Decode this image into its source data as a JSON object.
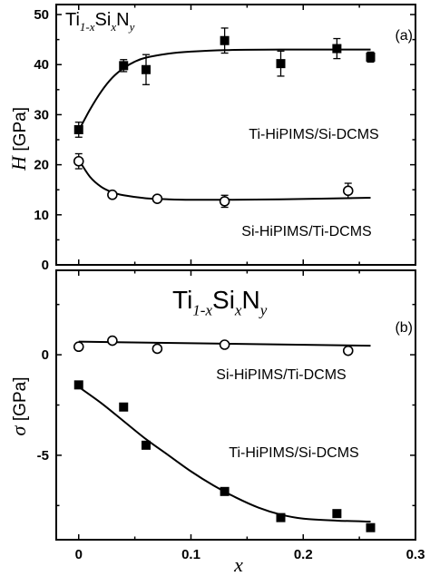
{
  "chart_data": [
    {
      "type": "scatter",
      "panel_label": "(a)",
      "formula": {
        "base1": "Ti",
        "sub1": "1-x",
        "base2": "Si",
        "sub2": "x",
        "base3": "N",
        "sub3": "y"
      },
      "ylabel": {
        "symbol": "H",
        "unit": "[GPa]"
      },
      "xlim": [
        -0.02,
        0.3
      ],
      "ylim": [
        0,
        52
      ],
      "yticks": [
        0,
        10,
        20,
        30,
        40,
        50
      ],
      "series": [
        {
          "name": "Ti-HiPIMS/Si-DCMS",
          "marker": "filled-square",
          "x": [
            0,
            0.04,
            0.06,
            0.13,
            0.18,
            0.23,
            0.26
          ],
          "y": [
            27,
            39.8,
            39,
            44.8,
            40.2,
            43.2,
            41.5
          ],
          "err": [
            1.5,
            1.2,
            3,
            2.5,
            2.5,
            2,
            1
          ],
          "fit": [
            [
              0,
              26.8
            ],
            [
              0.01,
              31
            ],
            [
              0.02,
              34.6
            ],
            [
              0.03,
              37.4
            ],
            [
              0.04,
              39.3
            ],
            [
              0.05,
              40.6
            ],
            [
              0.06,
              41.4
            ],
            [
              0.08,
              42.2
            ],
            [
              0.1,
              42.6
            ],
            [
              0.13,
              42.9
            ],
            [
              0.18,
              43
            ],
            [
              0.26,
              43
            ]
          ]
        },
        {
          "name": "Si-HiPIMS/Ti-DCMS",
          "marker": "open-circle",
          "x": [
            0,
            0.03,
            0.07,
            0.13,
            0.24
          ],
          "y": [
            20.7,
            14,
            13.2,
            12.7,
            14.8
          ],
          "err": [
            1.5,
            0,
            0.5,
            1.2,
            1.5
          ],
          "fit": [
            [
              0,
              21
            ],
            [
              0.01,
              17.6
            ],
            [
              0.02,
              15.6
            ],
            [
              0.03,
              14.5
            ],
            [
              0.04,
              13.9
            ],
            [
              0.06,
              13.3
            ],
            [
              0.08,
              13.1
            ],
            [
              0.1,
              13
            ],
            [
              0.13,
              13
            ],
            [
              0.18,
              13.1
            ],
            [
              0.26,
              13.4
            ]
          ]
        }
      ]
    },
    {
      "type": "scatter",
      "panel_label": "(b)",
      "formula": {
        "base1": "Ti",
        "sub1": "1-x",
        "base2": "Si",
        "sub2": "x",
        "base3": "N",
        "sub3": "y"
      },
      "ylabel": {
        "symbol": "σ",
        "unit": "[GPa]"
      },
      "xlabel": "x",
      "xlim": [
        -0.02,
        0.3
      ],
      "ylim": [
        -9.2,
        4.2
      ],
      "xticks": [
        0,
        0.1,
        0.2,
        0.3
      ],
      "xtick_labels": [
        "0",
        "0.1",
        "0.2",
        "0.3"
      ],
      "yticks": [
        -5,
        0
      ],
      "series": [
        {
          "name": "Si-HiPIMS/Ti-DCMS",
          "marker": "open-circle",
          "x": [
            0,
            0.03,
            0.07,
            0.13,
            0.24
          ],
          "y": [
            0.4,
            0.7,
            0.3,
            0.5,
            0.2
          ],
          "fit": [
            [
              0,
              0.65
            ],
            [
              0.26,
              0.45
            ]
          ]
        },
        {
          "name": "Ti-HiPIMS/Si-DCMS",
          "marker": "filled-square",
          "x": [
            0,
            0.04,
            0.06,
            0.13,
            0.18,
            0.23,
            0.26
          ],
          "y": [
            -1.5,
            -2.6,
            -4.5,
            -6.8,
            -8.1,
            -7.9,
            -8.6
          ],
          "fit": [
            [
              0,
              -1.6
            ],
            [
              0.02,
              -2.4
            ],
            [
              0.04,
              -3.3
            ],
            [
              0.06,
              -4.2
            ],
            [
              0.08,
              -5
            ],
            [
              0.1,
              -5.8
            ],
            [
              0.12,
              -6.5
            ],
            [
              0.14,
              -7.1
            ],
            [
              0.16,
              -7.6
            ],
            [
              0.18,
              -7.95
            ],
            [
              0.2,
              -8.15
            ],
            [
              0.23,
              -8.25
            ],
            [
              0.26,
              -8.3
            ]
          ]
        }
      ]
    }
  ]
}
